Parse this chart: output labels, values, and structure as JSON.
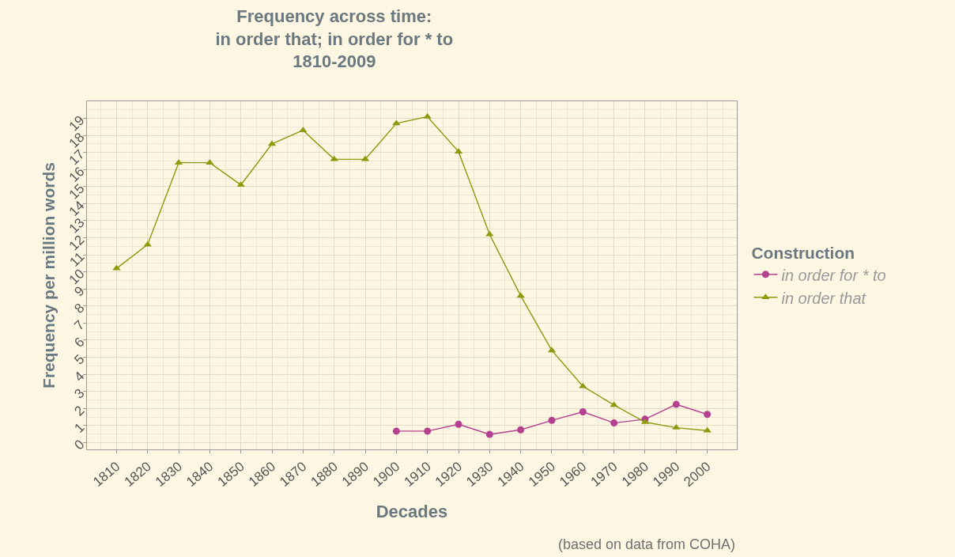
{
  "chart_data": {
    "type": "line",
    "title": "Frequency across time:\nin order that; in order for * to\n1810-2009",
    "xlabel": "Decades",
    "ylabel": "Frequency per million words",
    "legend_title": "Construction",
    "annotations": [
      "(based on data from COHA)"
    ],
    "x": [
      1810,
      1820,
      1830,
      1840,
      1850,
      1860,
      1870,
      1880,
      1890,
      1900,
      1910,
      1920,
      1930,
      1940,
      1950,
      1960,
      1970,
      1980,
      1990,
      2000
    ],
    "series": [
      {
        "name": "in order for * to",
        "color": "#b5408f",
        "marker": "circle",
        "values": [
          null,
          null,
          null,
          null,
          null,
          null,
          null,
          null,
          null,
          0.67,
          0.67,
          1.07,
          0.48,
          0.75,
          1.3,
          1.8,
          1.15,
          1.37,
          2.24,
          1.65
        ]
      },
      {
        "name": "in order that",
        "color": "#8c9a0e",
        "marker": "triangle",
        "values": [
          10.2,
          11.6,
          16.4,
          16.4,
          15.1,
          17.5,
          18.3,
          16.6,
          16.6,
          18.7,
          19.1,
          17.05,
          12.2,
          8.6,
          5.4,
          3.3,
          2.2,
          1.2,
          0.87,
          0.7
        ]
      }
    ],
    "xlim": [
      1800.5,
      2009.5
    ],
    "xticks": [
      1810,
      1820,
      1830,
      1840,
      1850,
      1860,
      1870,
      1880,
      1890,
      1900,
      1910,
      1920,
      1930,
      1940,
      1950,
      1960,
      1970,
      1980,
      1990,
      2000
    ],
    "ylim": [
      -0.4,
      20
    ],
    "yticks": [
      0,
      1,
      2,
      3,
      4,
      5,
      6,
      7,
      8,
      9,
      10,
      11,
      12,
      13,
      14,
      15,
      16,
      17,
      18,
      19
    ],
    "grid": true,
    "legend": "right",
    "line_style": "solid"
  }
}
